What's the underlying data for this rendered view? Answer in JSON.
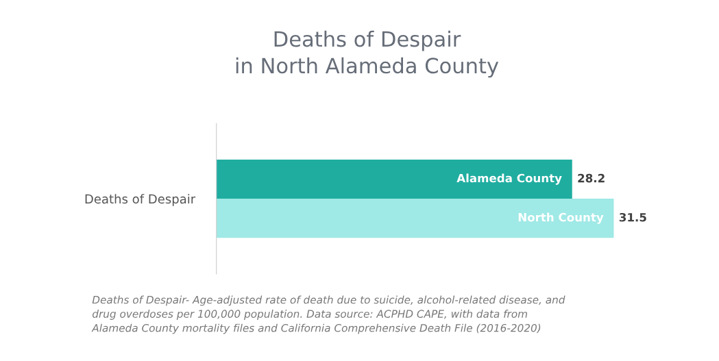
{
  "chart_data": {
    "type": "bar",
    "orientation": "horizontal",
    "title": "Deaths of Despair\nin North Alameda County",
    "categories": [
      "Deaths of Despair"
    ],
    "series": [
      {
        "name": "Alameda County",
        "color": "#1fada0",
        "values": [
          28.2
        ]
      },
      {
        "name": "North County",
        "color": "#9fe9e6",
        "values": [
          31.5
        ]
      }
    ],
    "data_labels": true,
    "grid": false,
    "legend": false,
    "tick_labels": "y",
    "annotations": [
      "Deaths of Despair- Age-adjusted rate of death due to suicide, alcohol-related disease, and\ndrug overdoses per 100,000 population. Data source: ACPHD CAPE, with data from\nAlameda County mortality files and California Comprehensive Death File (2016-2020)"
    ]
  }
}
